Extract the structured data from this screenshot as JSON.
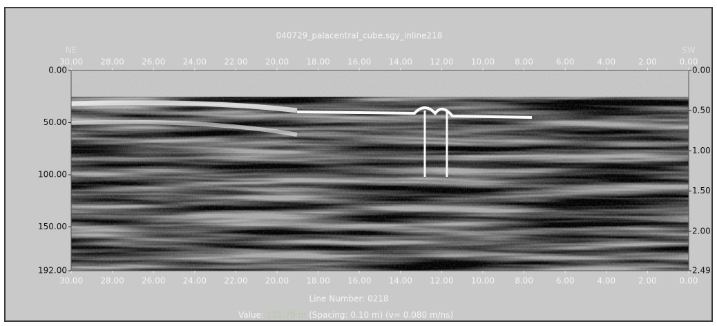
{
  "window": {
    "title": "040729_palacentral_cube.sgy_inline218",
    "left_direction": "NE",
    "right_direction": "SW",
    "top_axis": [
      "30.00",
      "28.00",
      "26.00",
      "24.00",
      "22.00",
      "20.00",
      "18.00",
      "16.00",
      "14.00",
      "12.00",
      "10.00",
      "8.00",
      "6.00",
      "4.00",
      "2.00",
      "0.00"
    ],
    "bottom_axis": [
      "30.00",
      "28.00",
      "26.00",
      "24.00",
      "22.00",
      "20.00",
      "18.00",
      "16.00",
      "14.00",
      "12.00",
      "10.00",
      "8.00",
      "6.00",
      "4.00",
      "2.00",
      "0.00"
    ],
    "left_axis": [
      "0.00",
      "50.00",
      "100.00",
      "150.00",
      "192.00"
    ],
    "right_axis": [
      "0.00",
      "0.50",
      "1.00",
      "1.50",
      "2.00",
      "2.49"
    ],
    "line_number": "Line Number: 0218",
    "value_prefix": "Value:",
    "value": "121.70 m",
    "value_suffix": "(Spacing: 0.10 m) (v= 0.080 m/ns)"
  }
}
